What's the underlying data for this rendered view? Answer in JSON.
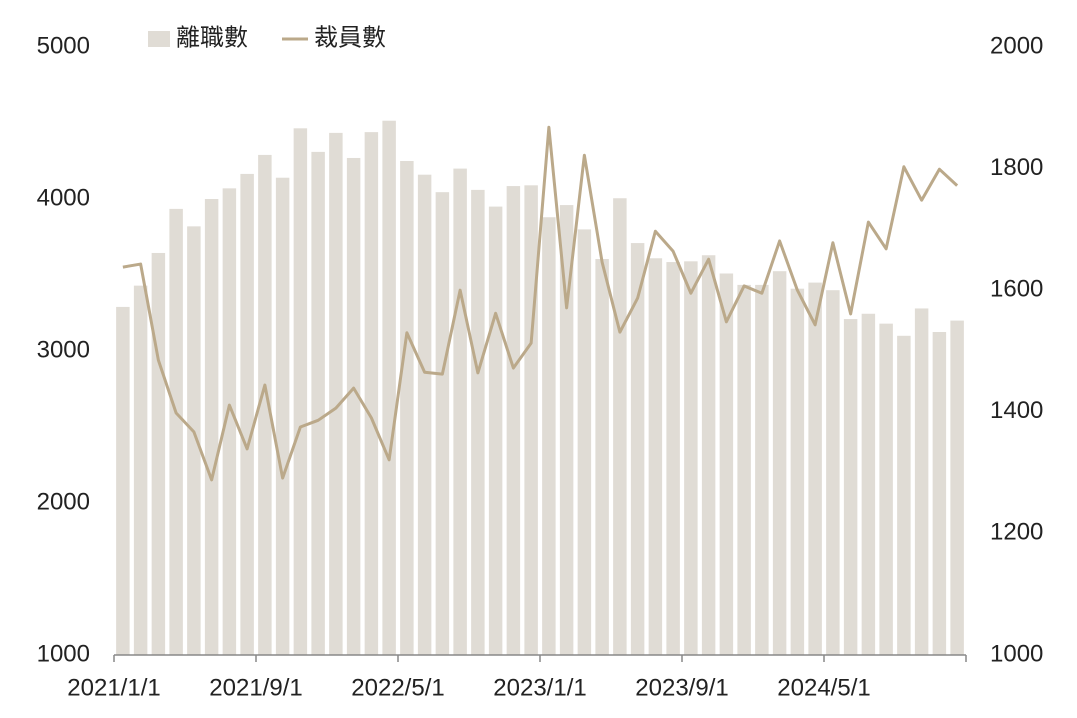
{
  "chart_data": {
    "type": "bar_line",
    "categories": [
      "2021/1/1",
      null,
      null,
      null,
      null,
      null,
      null,
      null,
      "2021/9/1",
      null,
      null,
      null,
      null,
      null,
      null,
      null,
      "2022/5/1",
      null,
      null,
      null,
      null,
      null,
      null,
      null,
      "2023/1/1",
      null,
      null,
      null,
      null,
      null,
      null,
      null,
      "2023/9/1",
      null,
      null,
      null,
      null,
      null,
      null,
      null,
      "2024/5/1",
      null,
      null,
      null,
      null,
      null,
      null,
      null
    ],
    "series": [
      {
        "name": "離職數",
        "type": "bar",
        "color": "#e0dcd5",
        "values": [
          3290,
          3430,
          3645,
          3935,
          3820,
          4000,
          4070,
          4165,
          4290,
          4140,
          4465,
          4310,
          4435,
          4270,
          4440,
          4515,
          4250,
          4160,
          4045,
          4200,
          4060,
          3950,
          4085,
          4090,
          3880,
          3960,
          3800,
          3605,
          4005,
          3710,
          3610,
          3585,
          3590,
          3630,
          3510,
          3435,
          3435,
          3525,
          3410,
          3450,
          3400,
          3210,
          3245,
          3180,
          3100,
          3280,
          3125,
          3200
        ]
      },
      {
        "name": "裁員數",
        "type": "line",
        "axis": "y2",
        "color": "#bba98a",
        "values": [
          1638,
          1643,
          1485,
          1398,
          1367,
          1288,
          1411,
          1339,
          1444,
          1291,
          1375,
          1386,
          1406,
          1439,
          1390,
          1321,
          1530,
          1465,
          1462,
          1600,
          1464,
          1562,
          1472,
          1513,
          1868,
          1571,
          1822,
          1646,
          1531,
          1587,
          1697,
          1664,
          1595,
          1651,
          1548,
          1607,
          1595,
          1681,
          1600,
          1543,
          1678,
          1561,
          1712,
          1668,
          1803,
          1748,
          1799,
          1772
        ]
      }
    ],
    "ylim": [
      1000,
      5000
    ],
    "yticks": [
      1000,
      2000,
      3000,
      4000,
      5000
    ],
    "y2lim": [
      1000,
      2000
    ],
    "y2ticks": [
      1000,
      1200,
      1400,
      1600,
      1800,
      2000
    ]
  }
}
